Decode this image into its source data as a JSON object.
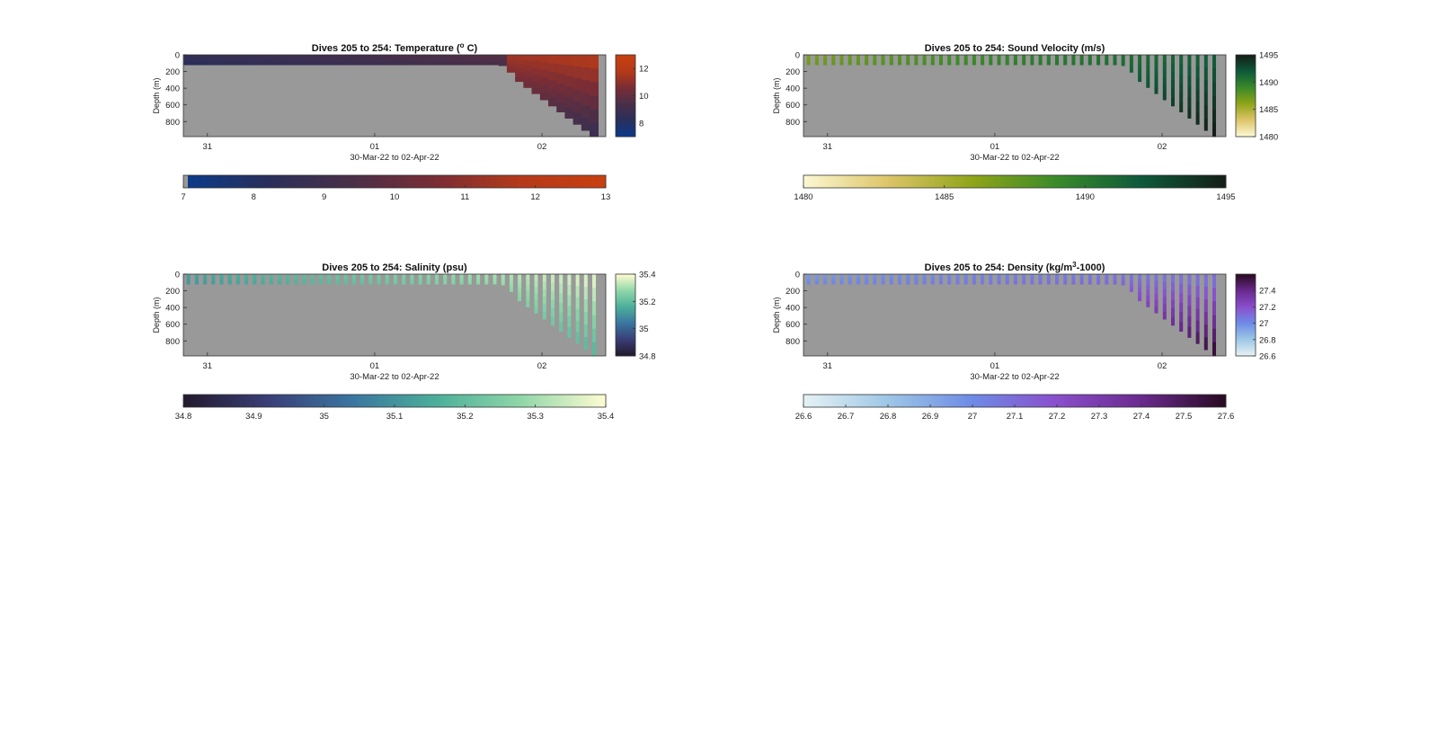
{
  "figure": {
    "charts": [
      {
        "id": "temperature",
        "title": "Dives 205 to 254: Temperature (° C)",
        "title_parts": [
          "Dives 205 to 254: Temperature (",
          "o",
          " C)"
        ],
        "ylabel": "Depth (m)",
        "xlabel": "30-Mar-22 to 02-Apr-22",
        "colormap": [
          "#0a3a8a",
          "#2a2f5a",
          "#4a2f48",
          "#7a2d35",
          "#b43a1a",
          "#c8400f"
        ],
        "cbar_ticks": [
          "8",
          "10",
          "12"
        ],
        "hbar_ticks": [
          "7",
          "8",
          "9",
          "10",
          "11",
          "12",
          "13"
        ]
      },
      {
        "id": "sound-velocity",
        "title": "Dives 205 to 254: Sound Velocity (m/s)",
        "title_parts": [
          "Dives 205 to 254: Sound Velocity (m/s)"
        ],
        "ylabel": "Depth (m)",
        "xlabel": "30-Mar-22 to 02-Apr-22",
        "colormap": [
          "#fbf7d0",
          "#dcc468",
          "#8fa418",
          "#3a8a2a",
          "#0f5a3a",
          "#141f18"
        ],
        "cbar_ticks": [
          "1480",
          "1485",
          "1490",
          "1495"
        ],
        "hbar_ticks": [
          "1480",
          "1485",
          "1490",
          "1495"
        ]
      },
      {
        "id": "salinity",
        "title": "Dives 205 to 254: Salinity (psu)",
        "title_parts": [
          "Dives 205 to 254: Salinity (psu)"
        ],
        "ylabel": "Depth (m)",
        "xlabel": "30-Mar-22 to 02-Apr-22",
        "colormap": [
          "#231a2e",
          "#3a3f78",
          "#3a76a0",
          "#4caf9a",
          "#8fd6a8",
          "#fcfbd0"
        ],
        "cbar_ticks": [
          "34.8",
          "35",
          "35.2",
          "35.4"
        ],
        "hbar_ticks": [
          "34.8",
          "34.9",
          "35",
          "35.1",
          "35.2",
          "35.3",
          "35.4"
        ]
      },
      {
        "id": "density",
        "title": "Dives 205 to 254: Density (kg/m³-1000)",
        "title_parts": [
          "Dives 205 to 254: Density (kg/m",
          "3",
          "-1000)"
        ],
        "ylabel": "Depth (m)",
        "xlabel": "30-Mar-22 to 02-Apr-22",
        "colormap": [
          "#e4f1f4",
          "#9cc6e6",
          "#6e8ae6",
          "#8a4fcc",
          "#6a2a8e",
          "#2a0a24"
        ],
        "cbar_ticks": [
          "26.6",
          "26.8",
          "27",
          "27.2",
          "27.4"
        ],
        "hbar_ticks": [
          "26.6",
          "26.7",
          "26.8",
          "26.9",
          "27",
          "27.1",
          "27.2",
          "27.3",
          "27.4",
          "27.5",
          "27.6"
        ]
      }
    ],
    "y_ticks": [
      "0",
      "200",
      "400",
      "600",
      "800"
    ],
    "x_ticks": [
      "31",
      "01",
      "02"
    ],
    "nan_color": "#999999"
  },
  "chart_data": [
    {
      "type": "heatmap",
      "title": "Dives 205 to 254: Temperature (° C)",
      "xlabel": "30-Mar-22 to 02-Apr-22",
      "ylabel": "Depth (m)",
      "x_ticks": [
        "31",
        "01",
        "02"
      ],
      "ylim": [
        980,
        0
      ],
      "y_ticks": [
        0,
        200,
        400,
        600,
        800
      ],
      "clim": [
        7,
        13
      ],
      "colorbar_ticks": [
        8,
        10,
        12
      ],
      "horizontal_colorbar_ticks": [
        7,
        8,
        9,
        10,
        11,
        12,
        13
      ],
      "approx_surface_value": 9.3,
      "approx_deep_value": 7.5
    },
    {
      "type": "heatmap",
      "title": "Dives 205 to 254: Sound Velocity (m/s)",
      "xlabel": "30-Mar-22 to 02-Apr-22",
      "ylabel": "Depth (m)",
      "x_ticks": [
        "31",
        "01",
        "02"
      ],
      "ylim": [
        980,
        0
      ],
      "y_ticks": [
        0,
        200,
        400,
        600,
        800
      ],
      "clim": [
        1480,
        1495
      ],
      "colorbar_ticks": [
        1480,
        1485,
        1490,
        1495
      ],
      "horizontal_colorbar_ticks": [
        1480,
        1485,
        1490,
        1495
      ]
    },
    {
      "type": "heatmap",
      "title": "Dives 205 to 254: Salinity (psu)",
      "xlabel": "30-Mar-22 to 02-Apr-22",
      "ylabel": "Depth (m)",
      "x_ticks": [
        "31",
        "01",
        "02"
      ],
      "ylim": [
        980,
        0
      ],
      "y_ticks": [
        0,
        200,
        400,
        600,
        800
      ],
      "clim": [
        34.8,
        35.4
      ],
      "colorbar_ticks": [
        34.8,
        35,
        35.2,
        35.4
      ],
      "horizontal_colorbar_ticks": [
        34.8,
        34.9,
        35,
        35.1,
        35.2,
        35.3,
        35.4
      ]
    },
    {
      "type": "heatmap",
      "title": "Dives 205 to 254: Density (kg/m³-1000)",
      "xlabel": "30-Mar-22 to 02-Apr-22",
      "ylabel": "Depth (m)",
      "x_ticks": [
        "31",
        "01",
        "02"
      ],
      "ylim": [
        980,
        0
      ],
      "y_ticks": [
        0,
        200,
        400,
        600,
        800
      ],
      "clim": [
        26.6,
        27.6
      ],
      "colorbar_ticks": [
        26.6,
        26.8,
        27,
        27.2,
        27.4
      ],
      "horizontal_colorbar_ticks": [
        26.6,
        26.7,
        26.8,
        26.9,
        27,
        27.1,
        27.2,
        27.3,
        27.4,
        27.5,
        27.6
      ]
    }
  ]
}
